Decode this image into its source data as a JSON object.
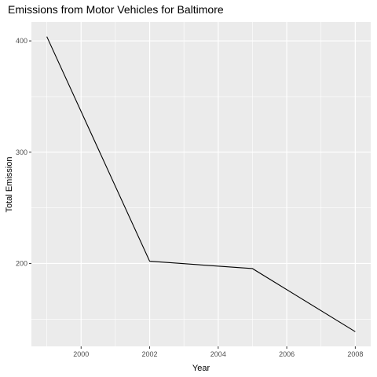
{
  "chart_data": {
    "type": "line",
    "title": "Emissions from Motor Vehicles for Baltimore",
    "xlabel": "Year",
    "ylabel": "Total Emission",
    "x": [
      1999,
      2002,
      2005,
      2008
    ],
    "y": [
      403.8,
      202.0,
      195.4,
      138.7
    ],
    "xlim": [
      1998.55,
      2008.45
    ],
    "ylim": [
      125.5,
      417.0
    ],
    "x_major_ticks": [
      2000,
      2002,
      2004,
      2006,
      2008
    ],
    "x_minor_ticks": [
      1999,
      2001,
      2003,
      2005,
      2007
    ],
    "y_major_ticks": [
      200,
      300,
      400
    ],
    "y_minor_ticks": [
      150,
      250,
      350
    ],
    "x_tick_labels": [
      "2000",
      "2002",
      "2004",
      "2006",
      "2008"
    ],
    "y_tick_labels": [
      "200",
      "300",
      "400"
    ],
    "grid": true,
    "colors": {
      "panel_background": "#ebebeb",
      "grid_line": "#ffffff",
      "series_line": "#000000",
      "tick_mark": "#333333"
    }
  }
}
